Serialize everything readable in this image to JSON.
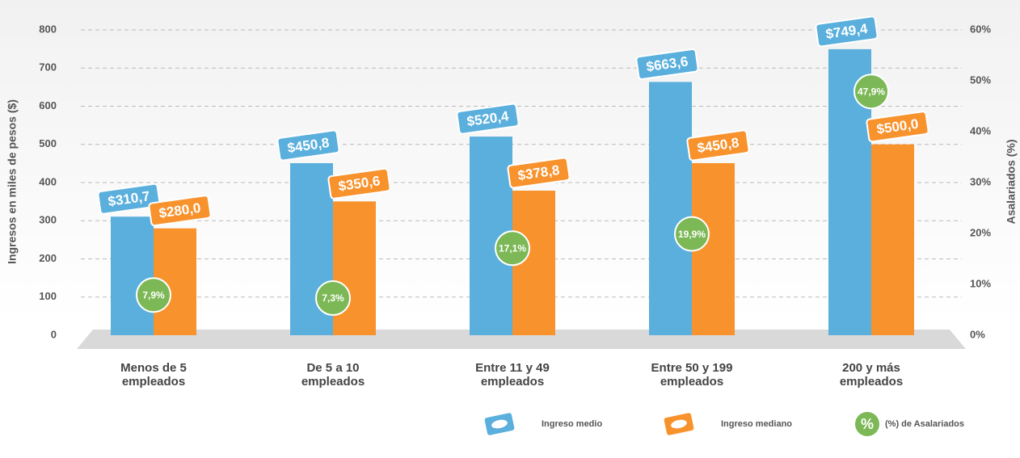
{
  "chart_data": {
    "type": "bar",
    "categories": [
      "Menos de 5 empleados",
      "De 5 a 10 empleados",
      "Entre 11 y 49 empleados",
      "Entre 50 y 199 empleados",
      "200 y más empleados"
    ],
    "series": [
      {
        "name": "Ingreso medio",
        "color": "#5aafdd",
        "values": [
          310.7,
          450.8,
          520.4,
          663.6,
          749.4
        ],
        "value_labels": [
          "$310,7",
          "$450,8",
          "$520,4",
          "$663,6",
          "$749,4"
        ]
      },
      {
        "name": "Ingreso mediano",
        "color": "#f7922c",
        "values": [
          280.0,
          350.6,
          378.8,
          450.8,
          500.0
        ],
        "value_labels": [
          "$280,0",
          "$350,6",
          "$378,8",
          "$450,8",
          "$500,0"
        ]
      },
      {
        "name": "(%) de Asalariados",
        "color": "#7cb856",
        "axis": "y2",
        "symbol": "%",
        "values": [
          7.9,
          7.3,
          17.1,
          19.9,
          47.9
        ],
        "value_labels": [
          "7,9%",
          "7,3%",
          "17,1%",
          "19,9%",
          "47,9%"
        ]
      }
    ],
    "ylabel": "Ingresos en miles de pesos ($)",
    "y2label": "Asalariados (%)",
    "ylim": [
      0,
      800
    ],
    "yticks": [
      0,
      100,
      200,
      300,
      400,
      500,
      600,
      700,
      800
    ],
    "y2lim": [
      0,
      60
    ],
    "y2ticks": [
      {
        "value": 0,
        "label": "0%"
      },
      {
        "value": 10,
        "label": "10%"
      },
      {
        "value": 20,
        "label": "20%"
      },
      {
        "value": 30,
        "label": "30%"
      },
      {
        "value": 40,
        "label": "40%"
      },
      {
        "value": 50,
        "label": "50%"
      },
      {
        "value": 60,
        "label": "60%"
      }
    ],
    "grid": true
  }
}
